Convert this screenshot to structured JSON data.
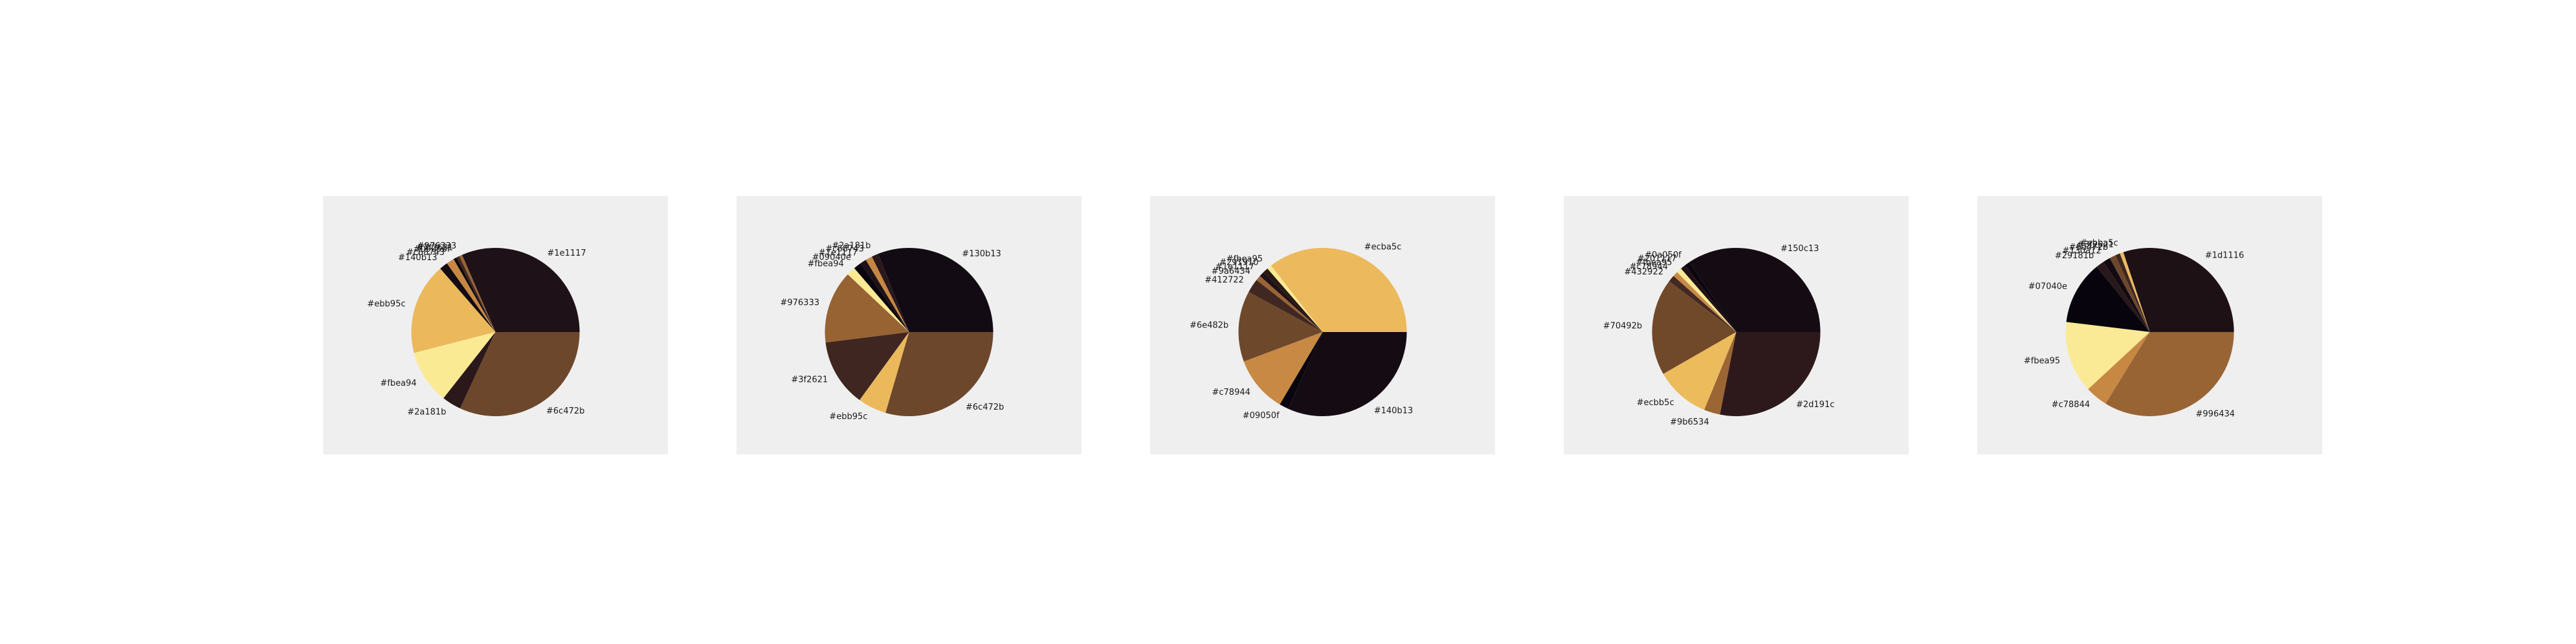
{
  "chart_data": [
    {
      "type": "pie",
      "slices": [
        {
          "label": "#1e1117",
          "value": 31.5,
          "color": "#1e1117"
        },
        {
          "label": "#976333",
          "value": 0.6,
          "color": "#976333"
        },
        {
          "label": "#3f2621",
          "value": 0.6,
          "color": "#3f2621"
        },
        {
          "label": "#09050f",
          "value": 0.6,
          "color": "#09050f"
        },
        {
          "label": "#c68743",
          "value": 1.5,
          "color": "#c68743"
        },
        {
          "label": "#140b13",
          "value": 1.6,
          "color": "#140b13"
        },
        {
          "label": "#ebb95c",
          "value": 17.6,
          "color": "#ebb95c"
        },
        {
          "label": "#fbea94",
          "value": 10.4,
          "color": "#fbea94"
        },
        {
          "label": "#2a181b",
          "value": 3.7,
          "color": "#2a181b"
        },
        {
          "label": "#6c472b",
          "value": 31.9,
          "color": "#6c472b"
        }
      ]
    },
    {
      "type": "pie",
      "slices": [
        {
          "label": "#130b13",
          "value": 31.0,
          "color": "#130b13"
        },
        {
          "label": "#2a181b",
          "value": 1.3,
          "color": "#2a181b"
        },
        {
          "label": "#c68743",
          "value": 1.3,
          "color": "#c68743"
        },
        {
          "label": "#1e1117",
          "value": 1.2,
          "color": "#1e1117"
        },
        {
          "label": "#09040e",
          "value": 1.5,
          "color": "#09040e"
        },
        {
          "label": "#fbea94",
          "value": 1.7,
          "color": "#fbea94"
        },
        {
          "label": "#976333",
          "value": 14.0,
          "color": "#976333"
        },
        {
          "label": "#3f2621",
          "value": 13.0,
          "color": "#3f2621"
        },
        {
          "label": "#ebb95c",
          "value": 5.5,
          "color": "#ebb95c"
        },
        {
          "label": "#6c472b",
          "value": 29.5,
          "color": "#6c472b"
        }
      ]
    },
    {
      "type": "pie",
      "slices": [
        {
          "label": "#ecba5c",
          "value": 35.5,
          "color": "#ecba5c"
        },
        {
          "label": "#fbea95",
          "value": 0.9,
          "color": "#fbea95"
        },
        {
          "label": "#291910",
          "value": 1.0,
          "color": "#291910"
        },
        {
          "label": "#1e1117",
          "value": 1.0,
          "color": "#1e1117"
        },
        {
          "label": "#9a6434",
          "value": 1.0,
          "color": "#9a6434"
        },
        {
          "label": "#412722",
          "value": 2.7,
          "color": "#412722"
        },
        {
          "label": "#6e482b",
          "value": 13.6,
          "color": "#6e482b"
        },
        {
          "label": "#c78944",
          "value": 10.8,
          "color": "#c78944"
        },
        {
          "label": "#09050f",
          "value": 1.8,
          "color": "#09050f"
        },
        {
          "label": "#140b13",
          "value": 31.7,
          "color": "#140b13"
        }
      ]
    },
    {
      "type": "pie",
      "slices": [
        {
          "label": "#150c13",
          "value": 34.4,
          "color": "#150c13"
        },
        {
          "label": "#0a050f",
          "value": 1.0,
          "color": "#0a050f"
        },
        {
          "label": "#201117",
          "value": 1.0,
          "color": "#201117"
        },
        {
          "label": "#fbea95",
          "value": 1.0,
          "color": "#fbea95"
        },
        {
          "label": "#c78944",
          "value": 1.0,
          "color": "#c78944"
        },
        {
          "label": "#432922",
          "value": 1.3,
          "color": "#432922"
        },
        {
          "label": "#70492b",
          "value": 18.6,
          "color": "#70492b"
        },
        {
          "label": "#ecbb5c",
          "value": 10.5,
          "color": "#ecbb5c"
        },
        {
          "label": "#9b6534",
          "value": 3.1,
          "color": "#9b6534"
        },
        {
          "label": "#2d191c",
          "value": 28.1,
          "color": "#2d191c"
        }
      ]
    },
    {
      "type": "pie",
      "slices": [
        {
          "label": "#1d1116",
          "value": 30.1,
          "color": "#1d1116"
        },
        {
          "label": "#ebba5c",
          "value": 0.7,
          "color": "#ebba5c"
        },
        {
          "label": "#3f2621",
          "value": 0.9,
          "color": "#3f2621"
        },
        {
          "label": "#6d472b",
          "value": 1.2,
          "color": "#6d472b"
        },
        {
          "label": "#130a12",
          "value": 1.4,
          "color": "#130a12"
        },
        {
          "label": "#29181b",
          "value": 1.6,
          "color": "#29181b"
        },
        {
          "label": "#07040e",
          "value": 12.2,
          "color": "#07040e"
        },
        {
          "label": "#fbea95",
          "value": 13.8,
          "color": "#fbea95"
        },
        {
          "label": "#c78844",
          "value": 4.3,
          "color": "#c78844"
        },
        {
          "label": "#996434",
          "value": 33.8,
          "color": "#996434"
        }
      ]
    }
  ]
}
